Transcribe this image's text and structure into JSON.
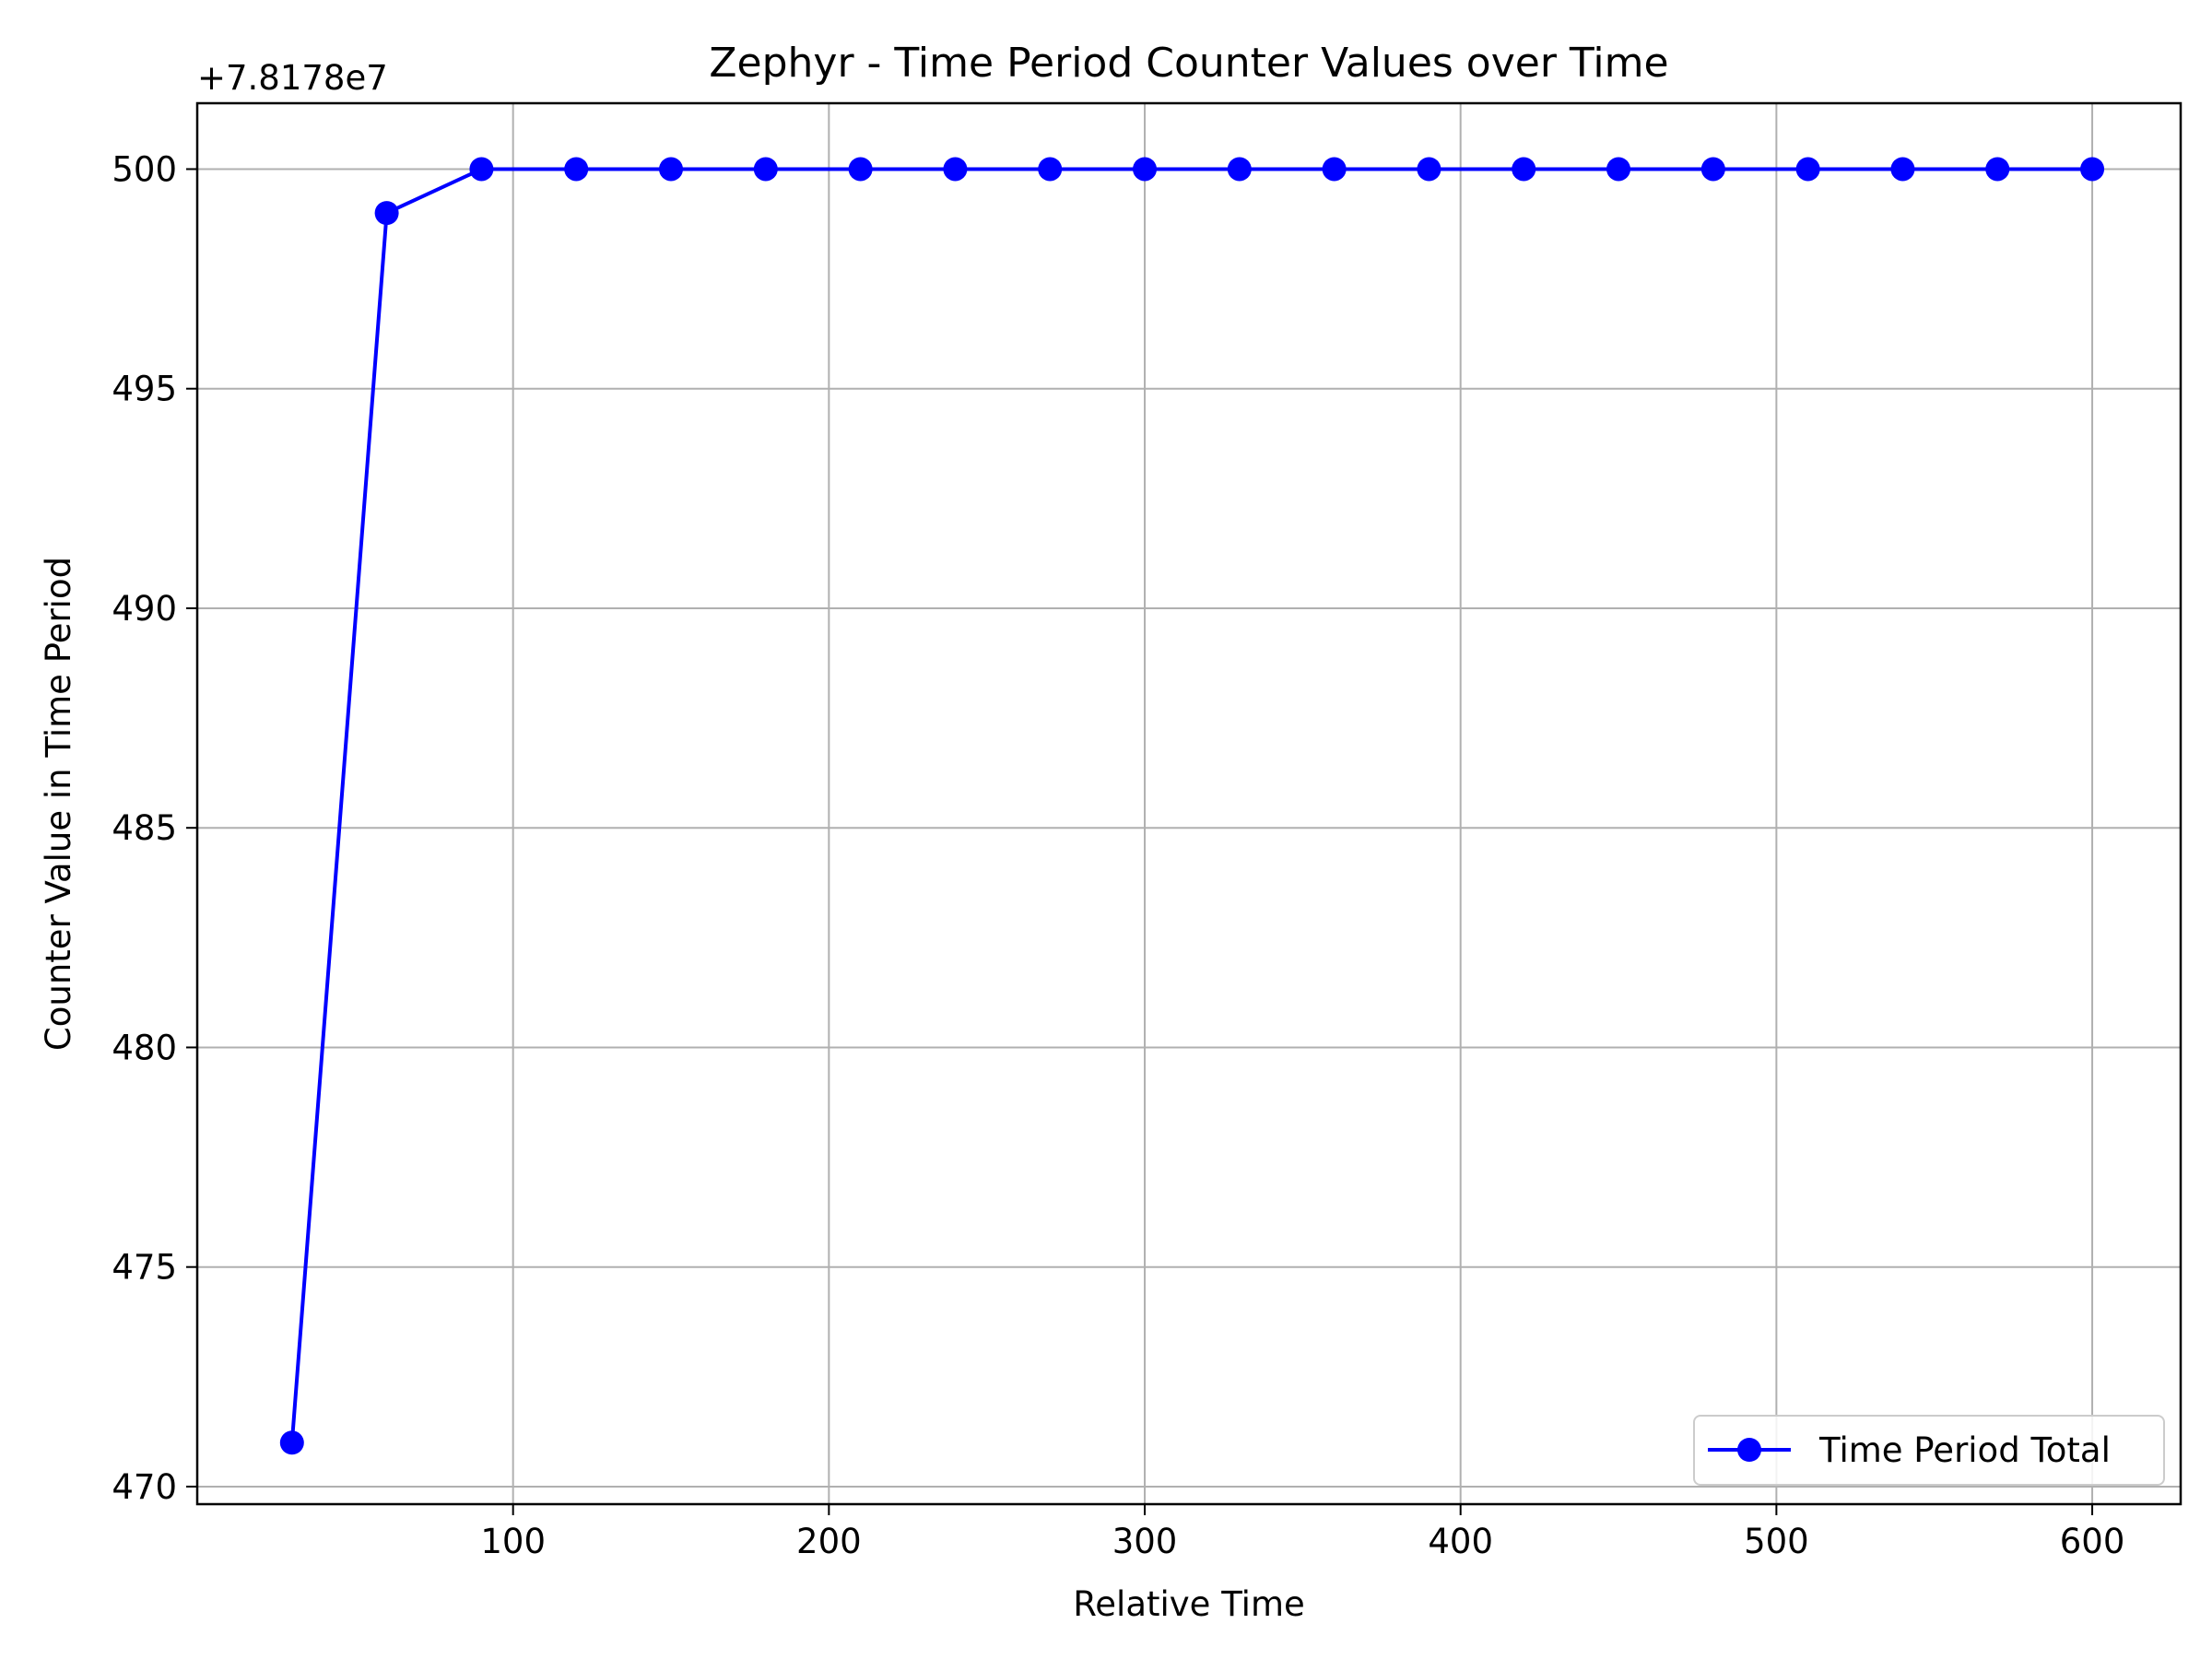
{
  "chart_data": {
    "type": "line",
    "title": "Zephyr - Time Period Counter Values over Time",
    "xlabel": "Relative Time",
    "ylabel": "Counter Value in Time Period",
    "y_offset_label": "+7.8178e7",
    "xlim": [
      0,
      628
    ],
    "ylim": [
      469.6,
      501.5
    ],
    "x_ticks": [
      100,
      200,
      300,
      400,
      500,
      600
    ],
    "y_ticks": [
      470,
      475,
      480,
      485,
      490,
      495,
      500
    ],
    "grid": true,
    "legend_position": "lower right",
    "series": [
      {
        "name": "Time Period Total",
        "color": "#0000ff",
        "marker": "circle",
        "x": [
          30,
          60,
          90,
          120,
          150,
          180,
          210,
          240,
          270,
          300,
          330,
          360,
          390,
          420,
          450,
          480,
          510,
          540,
          570,
          600
        ],
        "y": [
          471,
          499,
          500,
          500,
          500,
          500,
          500,
          500,
          500,
          500,
          500,
          500,
          500,
          500,
          500,
          500,
          500,
          500,
          500,
          500
        ]
      }
    ]
  }
}
